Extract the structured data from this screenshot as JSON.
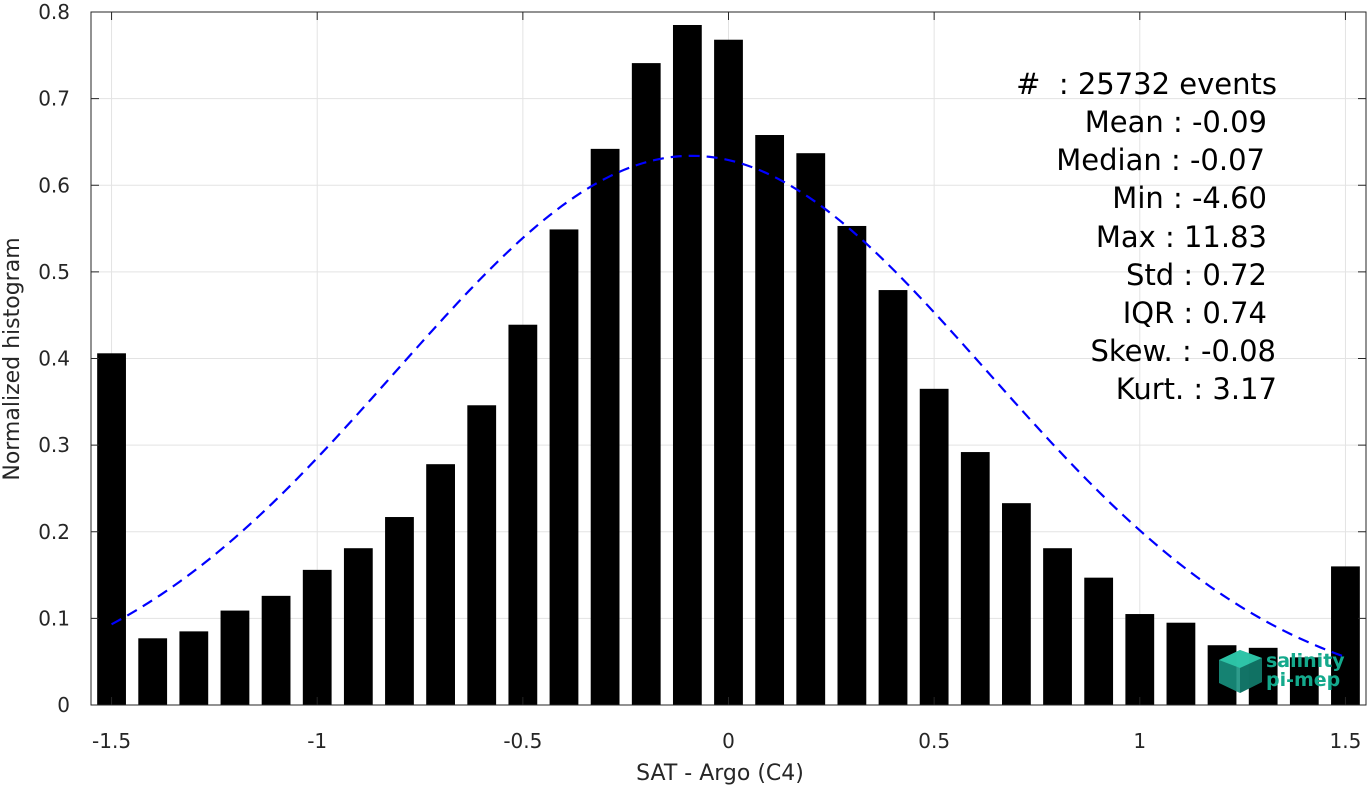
{
  "chart_data": {
    "type": "bar",
    "xlabel": "SAT - Argo (C4)",
    "ylabel": "Normalized histogram",
    "xlim": [
      -1.55,
      1.55
    ],
    "ylim": [
      0,
      0.8
    ],
    "xticks": [
      -1.5,
      -1,
      -0.5,
      0,
      0.5,
      1,
      1.5
    ],
    "xtick_labels": [
      "-1.5",
      "-1",
      "-0.5",
      "0",
      "0.5",
      "1",
      "1.5"
    ],
    "yticks": [
      0,
      0.1,
      0.2,
      0.3,
      0.4,
      0.5,
      0.6,
      0.7,
      0.8
    ],
    "ytick_labels": [
      "0",
      "0.1",
      "0.2",
      "0.3",
      "0.4",
      "0.5",
      "0.6",
      "0.7",
      "0.8"
    ],
    "grid": true,
    "bar_color": "#000000",
    "bar_width": 0.07,
    "x": [
      -1.5,
      -1.4,
      -1.3,
      -1.2,
      -1.1,
      -1.0,
      -0.9,
      -0.8,
      -0.7,
      -0.6,
      -0.5,
      -0.4,
      -0.3,
      -0.2,
      -0.1,
      0.0,
      0.1,
      0.2,
      0.3,
      0.4,
      0.5,
      0.6,
      0.7,
      0.8,
      0.9,
      1.0,
      1.1,
      1.2,
      1.3,
      1.4,
      1.5
    ],
    "values": [
      0.406,
      0.077,
      0.085,
      0.109,
      0.126,
      0.156,
      0.181,
      0.217,
      0.278,
      0.346,
      0.439,
      0.549,
      0.642,
      0.741,
      0.785,
      0.768,
      0.658,
      0.637,
      0.553,
      0.479,
      0.365,
      0.292,
      0.233,
      0.181,
      0.147,
      0.105,
      0.095,
      0.069,
      0.066,
      0.055,
      0.16
    ],
    "fit_curve": {
      "type": "gaussian",
      "mean": -0.09,
      "std": 0.72,
      "peak": 0.634,
      "color": "#0000ff",
      "style": "dashed",
      "xrange": [
        -1.5,
        1.5
      ]
    },
    "annotations": [
      "#  : 25732 events",
      "Mean : -0.09",
      "Median : -0.07",
      "Min : -4.60",
      "Max : 11.83",
      "Std : 0.72",
      "IQR : 0.74",
      "Skew. : -0.08",
      "Kurt. : 3.17"
    ]
  },
  "logo": {
    "line1": "salinity",
    "line2": "pi-mep",
    "color": "#14a98c"
  }
}
